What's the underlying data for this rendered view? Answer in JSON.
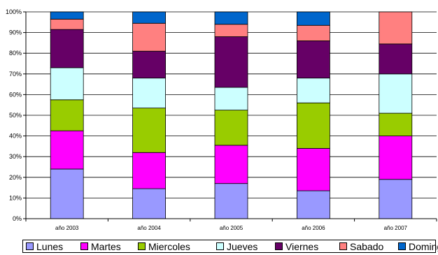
{
  "chart_data": {
    "type": "bar",
    "stacked": "percent",
    "categories": [
      "año 2003",
      "año 2004",
      "año 2005",
      "año 2006",
      "año 2007"
    ],
    "ylim": [
      0,
      100
    ],
    "yticks": [
      "0%",
      "10%",
      "20%",
      "30%",
      "40%",
      "50%",
      "60%",
      "70%",
      "80%",
      "90%",
      "100%"
    ],
    "grid": true,
    "legend_position": "bottom",
    "series": [
      {
        "name": "Lunes",
        "color": "#9999ff",
        "values": [
          24,
          14.5,
          17,
          13.5,
          19
        ]
      },
      {
        "name": "Martes",
        "color": "#ff00ff",
        "values": [
          18.5,
          17.5,
          18.5,
          20.5,
          21
        ]
      },
      {
        "name": "Miercoles",
        "color": "#99cc00",
        "values": [
          15,
          21.5,
          17,
          22,
          11
        ]
      },
      {
        "name": "Jueves",
        "color": "#ccffff",
        "values": [
          15.5,
          14.5,
          11,
          12,
          19
        ]
      },
      {
        "name": "Viernes",
        "color": "#660066",
        "values": [
          18.5,
          13,
          24.5,
          18,
          14.5
        ]
      },
      {
        "name": "Sabado",
        "color": "#ff8080",
        "values": [
          5,
          13.5,
          6,
          7.5,
          15.5
        ]
      },
      {
        "name": "Domingo",
        "color": "#0066cc",
        "values": [
          3.5,
          5.5,
          6,
          6.5,
          0
        ]
      }
    ]
  }
}
